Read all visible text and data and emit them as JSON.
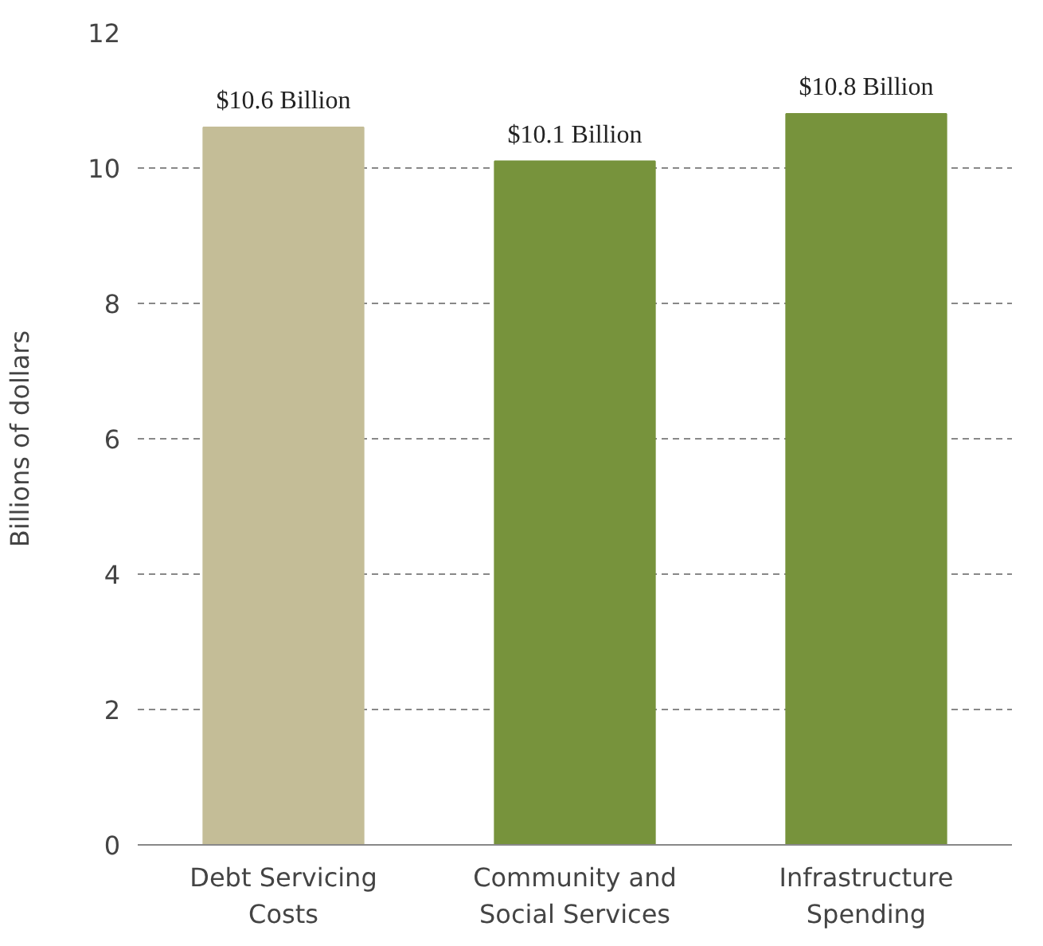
{
  "chart_data": {
    "type": "bar",
    "ylabel": "Billions of dollars",
    "categories": [
      "Debt Servicing Costs",
      "Community and Social Services",
      "Infrastructure Spending"
    ],
    "values": [
      10.6,
      10.1,
      10.8
    ],
    "colors": [
      "#c4bd97",
      "#77933c",
      "#77933c"
    ],
    "value_labels": [
      "$10.6 Billion",
      "$10.1 Billion",
      "$10.8 Billion"
    ],
    "ylim": [
      0,
      12
    ],
    "yticks": [
      0,
      2,
      4,
      6,
      8,
      10,
      12
    ],
    "grid": "y"
  }
}
